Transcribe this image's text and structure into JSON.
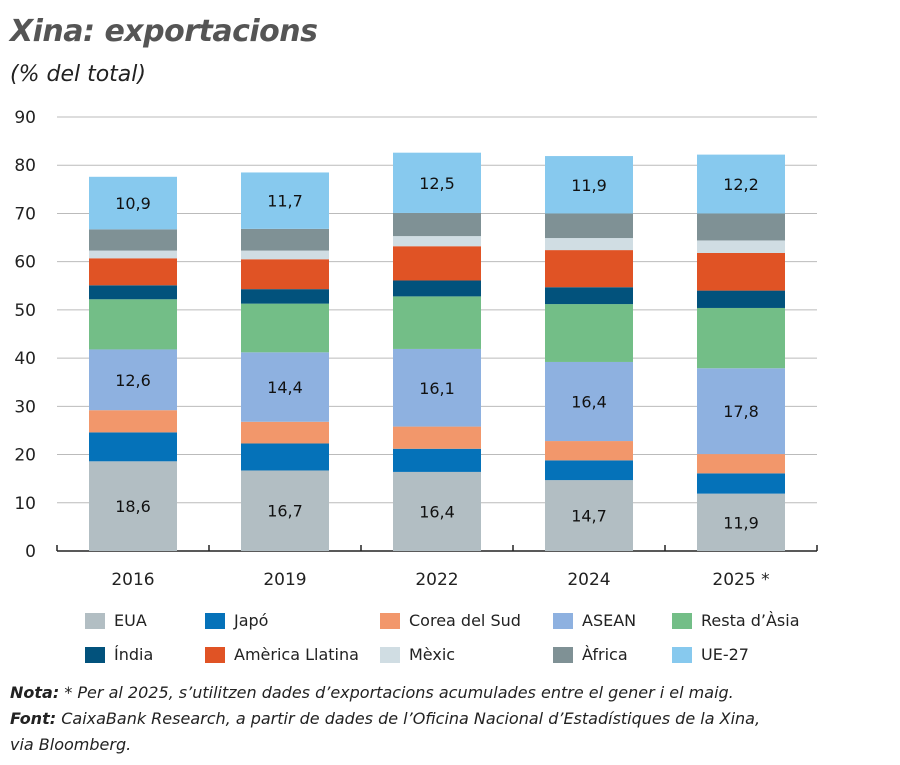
{
  "chart_data": {
    "type": "bar",
    "stacked": true,
    "title": "Xina: exportacions",
    "subtitle": "(% del total)",
    "categories": [
      "2016",
      "2019",
      "2022",
      "2024",
      "2025 *"
    ],
    "ylim": [
      0,
      90
    ],
    "yticks": [
      0,
      10,
      20,
      30,
      40,
      50,
      60,
      70,
      80,
      90
    ],
    "grid": true,
    "legend_position": "bottom",
    "series": [
      {
        "name": "EUA",
        "color": "#b2bec3",
        "values": [
          18.6,
          16.7,
          16.4,
          14.7,
          11.9
        ],
        "labeled": true
      },
      {
        "name": "Japó",
        "color": "#0572b9",
        "values": [
          6.0,
          5.6,
          4.8,
          4.1,
          4.2
        ]
      },
      {
        "name": "Corea del Sud",
        "color": "#f2976b",
        "values": [
          4.6,
          4.5,
          4.6,
          4.0,
          4.0
        ]
      },
      {
        "name": "ASEAN",
        "color": "#8eb1e0",
        "values": [
          12.6,
          14.4,
          16.1,
          16.4,
          17.8
        ],
        "labeled": true
      },
      {
        "name": "Resta d’Àsia",
        "color": "#73be87",
        "values": [
          10.4,
          10.1,
          10.9,
          12.0,
          12.5
        ]
      },
      {
        "name": "Índia",
        "color": "#02527c",
        "values": [
          2.9,
          3.0,
          3.3,
          3.5,
          3.6
        ]
      },
      {
        "name": "Amèrica Llatina",
        "color": "#e05325",
        "values": [
          5.6,
          6.2,
          7.1,
          7.7,
          7.8
        ]
      },
      {
        "name": "Mèxic",
        "color": "#d0dde3",
        "values": [
          1.6,
          1.8,
          2.1,
          2.5,
          2.6
        ]
      },
      {
        "name": "Àfrica",
        "color": "#7f9195",
        "values": [
          4.4,
          4.5,
          4.8,
          5.1,
          5.6
        ]
      },
      {
        "name": "UE-27",
        "color": "#87c9ee",
        "values": [
          10.9,
          11.7,
          12.5,
          11.9,
          12.2
        ],
        "labeled": true
      }
    ]
  },
  "notes": {
    "nota_label": "Nota:",
    "nota_text": " * Per al 2025, s’utilitzen dades d’exportacions acumulades entre el gener i el maig.",
    "font_label": "Font:",
    "font_text": " CaixaBank Research, a partir de dades de l’Oficina Nacional d’Estadístiques de la Xina,",
    "font_text2": "via Bloomberg."
  }
}
